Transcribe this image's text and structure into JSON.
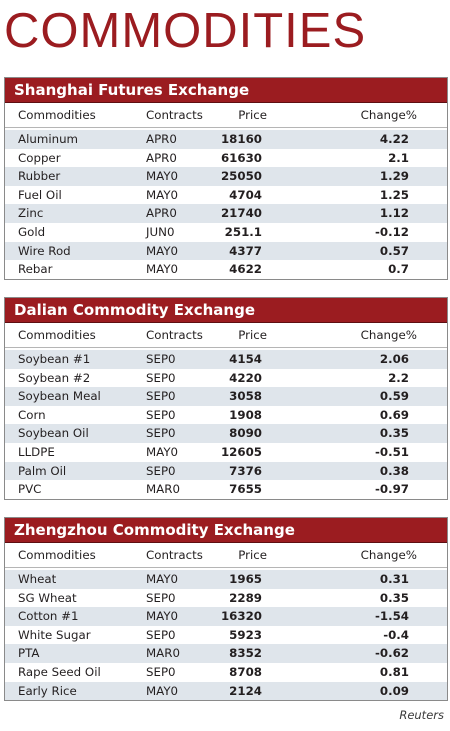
{
  "title": "COMMODITIES",
  "source": "Reuters",
  "columns": {
    "commodities": "Commodities",
    "contracts": "Contracts",
    "price": "Price",
    "change": "Change%"
  },
  "sections": [
    {
      "name": "Shanghai Futures Exchange",
      "rows": [
        {
          "commodity": "Aluminum",
          "contract": "APR0",
          "price": "18160",
          "change": "4.22"
        },
        {
          "commodity": "Copper",
          "contract": "APR0",
          "price": "61630",
          "change": "2.1"
        },
        {
          "commodity": "Rubber",
          "contract": "MAY0",
          "price": "25050",
          "change": "1.29"
        },
        {
          "commodity": "Fuel Oil",
          "contract": "MAY0",
          "price": "4704",
          "change": "1.25"
        },
        {
          "commodity": "Zinc",
          "contract": "APR0",
          "price": "21740",
          "change": "1.12"
        },
        {
          "commodity": "Gold",
          "contract": "JUN0",
          "price": "251.1",
          "change": "-0.12"
        },
        {
          "commodity": "Wire Rod",
          "contract": "MAY0",
          "price": "4377",
          "change": "0.57"
        },
        {
          "commodity": "Rebar",
          "contract": "MAY0",
          "price": "4622",
          "change": "0.7"
        }
      ]
    },
    {
      "name": "Dalian Commodity Exchange",
      "rows": [
        {
          "commodity": "Soybean #1",
          "contract": "SEP0",
          "price": "4154",
          "change": "2.06"
        },
        {
          "commodity": "Soybean #2",
          "contract": "SEP0",
          "price": "4220",
          "change": "2.2"
        },
        {
          "commodity": "Soybean Meal",
          "contract": "SEP0",
          "price": "3058",
          "change": "0.59"
        },
        {
          "commodity": "Corn",
          "contract": "SEP0",
          "price": "1908",
          "change": "0.69"
        },
        {
          "commodity": "Soybean Oil",
          "contract": "SEP0",
          "price": "8090",
          "change": "0.35"
        },
        {
          "commodity": "LLDPE",
          "contract": "MAY0",
          "price": "12605",
          "change": "-0.51"
        },
        {
          "commodity": "Palm Oil",
          "contract": "SEP0",
          "price": "7376",
          "change": "0.38"
        },
        {
          "commodity": "PVC",
          "contract": "MAR0",
          "price": "7655",
          "change": "-0.97"
        }
      ]
    },
    {
      "name": "Zhengzhou Commodity Exchange",
      "rows": [
        {
          "commodity": "Wheat",
          "contract": "MAY0",
          "price": "1965",
          "change": "0.31"
        },
        {
          "commodity": "SG Wheat",
          "contract": "SEP0",
          "price": "2289",
          "change": "0.35"
        },
        {
          "commodity": "Cotton #1",
          "contract": "MAY0",
          "price": "16320",
          "change": "-1.54"
        },
        {
          "commodity": "White Sugar",
          "contract": "SEP0",
          "price": "5923",
          "change": "-0.4"
        },
        {
          "commodity": "PTA",
          "contract": "MAR0",
          "price": "8352",
          "change": "-0.62"
        },
        {
          "commodity": "Rape Seed Oil",
          "contract": "SEP0",
          "price": "8708",
          "change": "0.81"
        },
        {
          "commodity": "Early Rice",
          "contract": "MAY0",
          "price": "2124",
          "change": "0.09"
        }
      ]
    }
  ]
}
